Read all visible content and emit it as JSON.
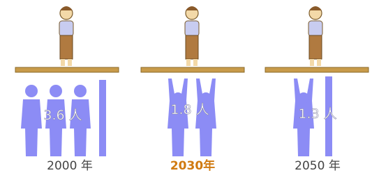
{
  "panels": [
    {
      "label": "3.6 人",
      "year": "2000 年"
    },
    {
      "label": "1.8 人",
      "year": "2030年"
    },
    {
      "label": "1.3 人",
      "year": "2050 年"
    }
  ]
}
